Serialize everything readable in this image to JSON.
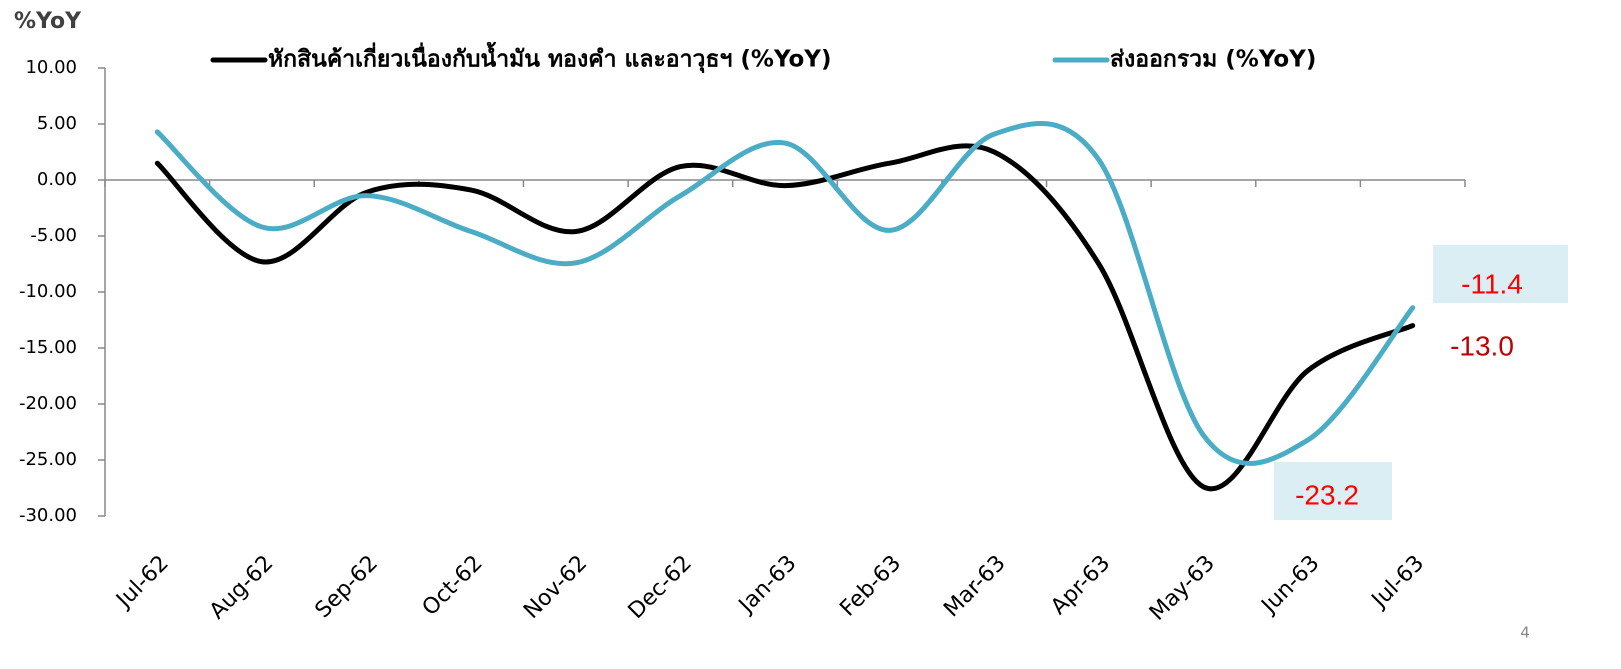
{
  "chart_data": {
    "type": "line",
    "y_label": "%YoY",
    "page_number": "4",
    "categories": [
      "Jul-62",
      "Aug-62",
      "Sep-62",
      "Oct-62",
      "Nov-62",
      "Dec-62",
      "Jan-63",
      "Feb-63",
      "Mar-63",
      "Apr-63",
      "May-63",
      "Jun-63",
      "Jul-63"
    ],
    "series": [
      {
        "name": "หักสินค้าเกี่ยวเนื่องกับน้ำมัน ทองคำ และอาวุธฯ (%YoY)",
        "color": "#000000",
        "values": [
          1.5,
          -7.3,
          -1.1,
          -0.9,
          -4.6,
          1.2,
          -0.5,
          1.5,
          2.5,
          -7.5,
          -27.4,
          -17.0,
          -13.0
        ],
        "value_labels": [
          null,
          null,
          null,
          null,
          null,
          null,
          null,
          null,
          null,
          null,
          null,
          null,
          "-13.0"
        ]
      },
      {
        "name": "ส่งออกรวม (%YoY)",
        "color": "#4bacc6",
        "values": [
          4.3,
          -4.2,
          -1.4,
          -4.6,
          -7.4,
          -1.4,
          3.3,
          -4.5,
          4.1,
          1.8,
          -22.8,
          -23.2,
          -11.4
        ],
        "value_labels": [
          null,
          null,
          null,
          null,
          null,
          null,
          null,
          null,
          null,
          null,
          null,
          "-23.2",
          "-11.4"
        ]
      }
    ],
    "ylim": [
      -30,
      10
    ],
    "yticks": [
      {
        "value": -30,
        "label": "-30.00"
      },
      {
        "value": -25,
        "label": "-25.00"
      },
      {
        "value": -20,
        "label": "-20.00"
      },
      {
        "value": -15,
        "label": "-15.00"
      },
      {
        "value": -10,
        "label": "-10.00"
      },
      {
        "value": -5,
        "label": "-5.00"
      },
      {
        "value": 0,
        "label": "0.00"
      },
      {
        "value": 5,
        "label": "5.00"
      },
      {
        "value": 10,
        "label": "10.00"
      }
    ],
    "grid": false,
    "smooth": true,
    "legend": "top"
  }
}
